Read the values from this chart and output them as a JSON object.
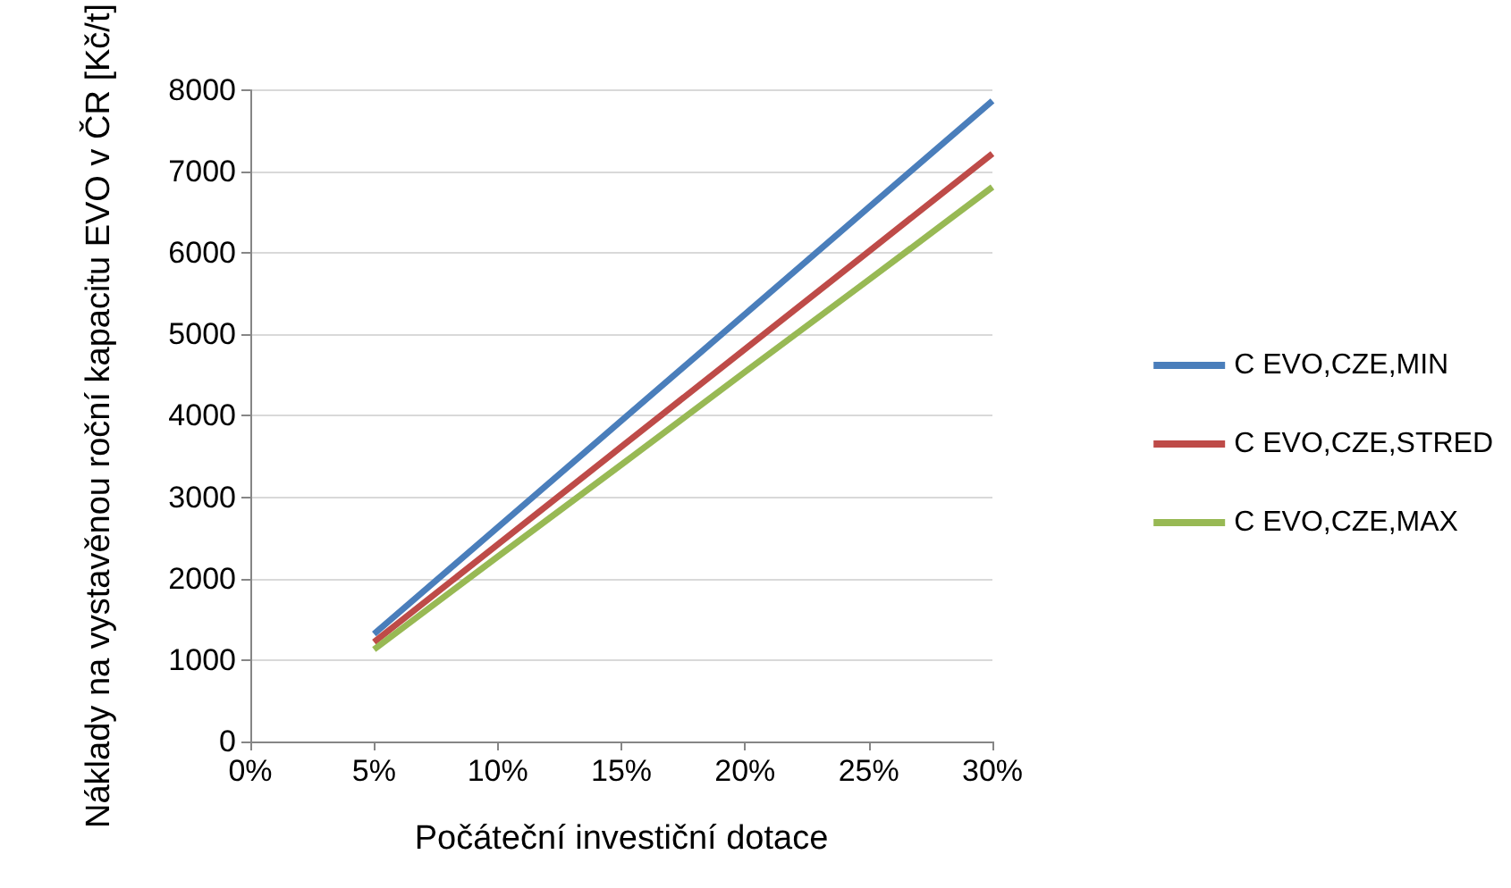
{
  "chart_data": {
    "type": "line",
    "xlabel": "Počáteční investiční dotace",
    "ylabel": "Náklady na vystavěnou roční kapacitu EVO v ČR [Kč/t]",
    "x": [
      5,
      10,
      15,
      20,
      25,
      30
    ],
    "series": [
      {
        "name": "C EVO,CZE,MIN",
        "color": "#4a7ebb",
        "values": [
          1320,
          2630,
          3940,
          5250,
          6560,
          7870
        ]
      },
      {
        "name": "C EVO,CZE,STRED",
        "color": "#be4b48",
        "values": [
          1220,
          2420,
          3620,
          4820,
          6020,
          7220
        ]
      },
      {
        "name": "C EVO,CZE,MAX",
        "color": "#98b954",
        "values": [
          1130,
          2270,
          3400,
          4540,
          5670,
          6810
        ]
      }
    ],
    "xlim": [
      0,
      30
    ],
    "xticks": [
      {
        "value": 0,
        "label": "0%"
      },
      {
        "value": 5,
        "label": "5%"
      },
      {
        "value": 10,
        "label": "10%"
      },
      {
        "value": 15,
        "label": "15%"
      },
      {
        "value": 20,
        "label": "20%"
      },
      {
        "value": 25,
        "label": "25%"
      },
      {
        "value": 30,
        "label": "30%"
      }
    ],
    "ylim": [
      0,
      8000
    ],
    "yticks": [
      0,
      1000,
      2000,
      3000,
      4000,
      5000,
      6000,
      7000,
      8000
    ],
    "grid": "y",
    "legend": "right",
    "marker": "none",
    "line_style": "solid"
  }
}
